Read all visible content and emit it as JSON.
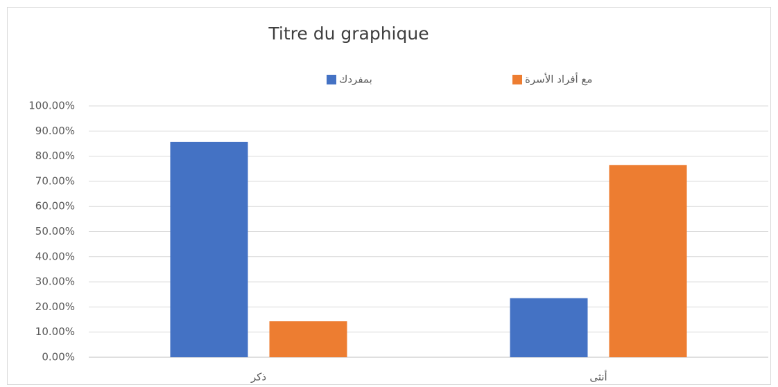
{
  "chart_data": {
    "type": "bar",
    "title": "Titre du graphique",
    "categories": [
      "ذكر",
      "أنثى"
    ],
    "series": [
      {
        "name": "بمفردك",
        "color": "#4472c4",
        "values": [
          85.7,
          23.5
        ]
      },
      {
        "name": "مع أفراد الأسرة",
        "color": "#ed7d31",
        "values": [
          14.3,
          76.5
        ]
      }
    ],
    "ylim": [
      0,
      100
    ],
    "yticks": [
      {
        "value": 0,
        "label": "0.00%"
      },
      {
        "value": 10,
        "label": "10.00%"
      },
      {
        "value": 20,
        "label": "20.00%"
      },
      {
        "value": 30,
        "label": "30.00%"
      },
      {
        "value": 40,
        "label": "40.00%"
      },
      {
        "value": 50,
        "label": "50.00%"
      },
      {
        "value": 60,
        "label": "60.00%"
      },
      {
        "value": 70,
        "label": "70.00%"
      },
      {
        "value": 80,
        "label": "80.00%"
      },
      {
        "value": 90,
        "label": "90.00%"
      },
      {
        "value": 100,
        "label": "100.00%"
      }
    ],
    "grid": true,
    "legend": "top"
  }
}
